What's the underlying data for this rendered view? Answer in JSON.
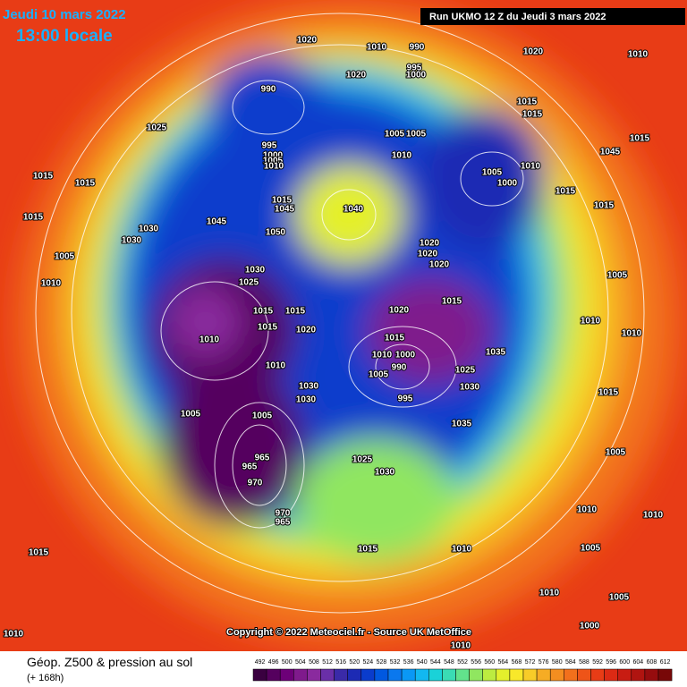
{
  "header": {
    "date": "Jeudi 10 mars 2022",
    "time": "13:00 locale",
    "run": "Run UKMO 12 Z du Jeudi 3 mars 2022"
  },
  "copyright": "Copyright © 2022 Meteociel.fr - Source UK MetOffice",
  "legend": {
    "title": "Géop. Z500 & pression au sol",
    "subtitle": "(+ 168h)",
    "values": [
      492,
      496,
      500,
      504,
      508,
      512,
      516,
      520,
      524,
      528,
      532,
      536,
      540,
      544,
      548,
      552,
      556,
      560,
      564,
      568,
      572,
      576,
      580,
      584,
      588,
      592,
      596,
      600,
      604,
      608,
      612
    ],
    "colors": [
      "#3a0040",
      "#55005e",
      "#6d0078",
      "#7f1a8c",
      "#8a2a9e",
      "#6a2fa8",
      "#3a2aa8",
      "#1c2ab4",
      "#0a3ccc",
      "#0058e0",
      "#0a78ee",
      "#0a98f5",
      "#12b8f0",
      "#1ad2d8",
      "#3adcb4",
      "#62e28c",
      "#90e660",
      "#bcec40",
      "#e4f02c",
      "#f8e82a",
      "#f8cc28",
      "#f6ac24",
      "#f48e20",
      "#f2701c",
      "#ee5418",
      "#e83c16",
      "#dc2a14",
      "#c81c12",
      "#b01410",
      "#960c0e",
      "#780808"
    ]
  },
  "isobars": [
    "1020",
    "1010",
    "990",
    "995",
    "1000",
    "1020",
    "1020",
    "1010",
    "990",
    "1025",
    "1005",
    "1005",
    "1010",
    "1005",
    "1000",
    "1010",
    "995",
    "1000",
    "1005",
    "1010",
    "1015",
    "1045",
    "1040",
    "1045",
    "1030",
    "1050",
    "1015",
    "1015",
    "1015",
    "1030",
    "1005",
    "1010",
    "1030",
    "1025",
    "1020",
    "1020",
    "1020",
    "1020",
    "1015",
    "1015",
    "1015",
    "1015",
    "1020",
    "1010",
    "1010",
    "1015",
    "1000",
    "1010",
    "990",
    "1005",
    "995",
    "1030",
    "1030",
    "1025",
    "1035",
    "1030",
    "1005",
    "1005",
    "1035",
    "965",
    "965",
    "970",
    "1025",
    "1030",
    "1015",
    "1010",
    "970",
    "965",
    "1015",
    "1010",
    "1010",
    "1010",
    "1000",
    "1005",
    "1010",
    "1010",
    "1005",
    "1005",
    "1015",
    "1010",
    "1010",
    "1005",
    "1015",
    "1015",
    "1015",
    "1015",
    "1015",
    "1045"
  ]
}
